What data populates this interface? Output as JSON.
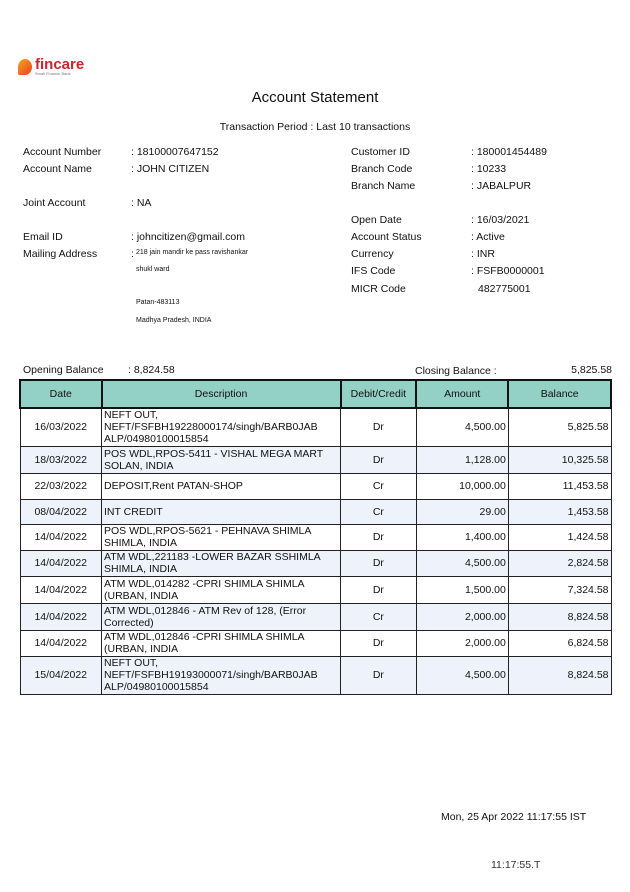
{
  "logo": {
    "brand": "fincare",
    "tagline": "Small Finance Bank"
  },
  "title": "Account Statement",
  "period": "Transaction Period : Last 10 transactions",
  "left_info": [
    {
      "label": "Account Number",
      "value": ": 18100007647152"
    },
    {
      "label": "Account Name",
      "value": ": JOHN CITIZEN"
    },
    {
      "label": "Joint Account",
      "value": ": NA"
    },
    {
      "label": "Email  ID",
      "value": ": johncitizen@gmail.com"
    },
    {
      "label": "Mailing Address",
      "value": ":"
    }
  ],
  "address": [
    "218 jain mandir ke pass ravishankar",
    "shukl ward",
    "Patan-483113",
    "Madhya Pradesh, INDIA"
  ],
  "right_info": [
    {
      "label": "Customer ID",
      "value": ": 180001454489"
    },
    {
      "label": "Branch Code",
      "value": ": 10233"
    },
    {
      "label": "Branch Name",
      "value": ": JABALPUR"
    },
    {
      "label": "Open Date",
      "value": ": 16/03/2021"
    },
    {
      "label": "Account Status",
      "value": ": Active"
    },
    {
      "label": "Currency",
      "value": ": INR"
    },
    {
      "label": "IFS Code",
      "value": ": FSFB0000001"
    },
    {
      "label": "MICR Code",
      "value": "482775001"
    }
  ],
  "opening": {
    "label": "Opening Balance",
    "value": ":  8,824.58"
  },
  "closing": {
    "label": "Closing Balance  :",
    "value": "5,825.58"
  },
  "columns": [
    "Date",
    "Description",
    "Debit/Credit",
    "Amount",
    "Balance"
  ],
  "rows": [
    [
      "16/03/2022",
      "NEFT OUT, NEFT/FSFBH19228000174/singh/BARB0JAB ALP/04980100015854",
      "Dr",
      "4,500.00",
      "5,825.58"
    ],
    [
      "18/03/2022",
      "POS WDL,RPOS-5411 - VISHAL MEGA MART SOLAN, INDIA",
      "Dr",
      "1,128.00",
      "10,325.58"
    ],
    [
      "22/03/2022",
      "DEPOSIT,Rent PATAN-SHOP",
      "Cr",
      "10,000.00",
      "11,453.58"
    ],
    [
      "08/04/2022",
      "INT CREDIT",
      "Cr",
      "29.00",
      "1,453.58"
    ],
    [
      "14/04/2022",
      "POS WDL,RPOS-5621 - PEHNAVA SHIMLA SHIMLA, INDIA",
      "Dr",
      "1,400.00",
      "1,424.58"
    ],
    [
      "14/04/2022",
      "ATM WDL,221183 -LOWER BAZAR SSHIMLA SHIMLA, INDIA",
      "Dr",
      "4,500.00",
      "2,824.58"
    ],
    [
      "14/04/2022",
      "ATM WDL,014282 -CPRI SHIMLA SHIMLA (URBAN, INDIA",
      "Dr",
      "1,500.00",
      "7,324.58"
    ],
    [
      "14/04/2022",
      "ATM WDL,012846 - ATM Rev of 128, (Error Corrected)",
      "Cr",
      "2,000.00",
      "8,824.58"
    ],
    [
      "14/04/2022",
      "ATM WDL,012846 -CPRI SHIMLA SHIMLA (URBAN, INDIA",
      "Dr",
      "2,000.00",
      "6,824.58"
    ],
    [
      "15/04/2022",
      "NEFT OUT, NEFT/FSFBH19193000071/singh/BARB0JAB ALP/04980100015854",
      "Dr",
      "4,500.00",
      "8,824.58"
    ]
  ],
  "footer": {
    "timestamp": "Mon, 25 Apr 2022 11:17:55 IST",
    "time_fragment": "11:17:55.T"
  },
  "colors": {
    "header": "#93d0c6",
    "alt_row": "#eef3fb",
    "brand": "#c8262d"
  }
}
